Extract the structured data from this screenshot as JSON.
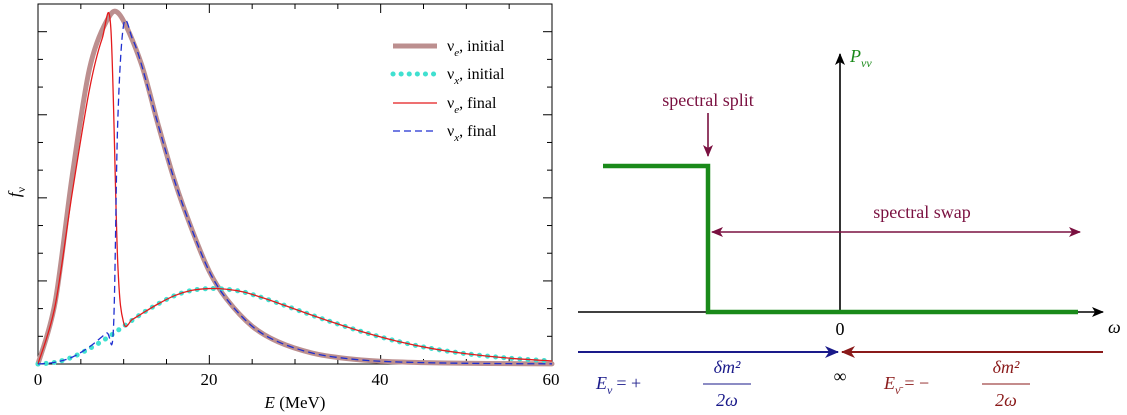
{
  "colors": {
    "nue_initial": "#bc8f8f",
    "nux_initial": "#40e0d0",
    "nue_final": "#e41a1c",
    "nux_final": "#1f2fd0",
    "step": "#1a8a1a",
    "annot": "#7a1040",
    "nu_arrow": "#1a1a8a",
    "nubar_arrow": "#8a1a1a"
  },
  "chart_data": {
    "type": "line",
    "xlabel": "E (MeV)",
    "ylabel": "f_ν",
    "xlim": [
      0,
      60
    ],
    "ylim": [
      0,
      1.05
    ],
    "x_ticks": [
      "0",
      "20",
      "40",
      "60"
    ],
    "legend_position": "top-right",
    "series": [
      {
        "name": "νe, initial",
        "style": "thick solid",
        "x": [
          0,
          2,
          4,
          6,
          8,
          9.5,
          12,
          14,
          16,
          18,
          20,
          22,
          25,
          28,
          32,
          36,
          40,
          45,
          50,
          55,
          60
        ],
        "y": [
          0,
          0.18,
          0.55,
          0.86,
          1.0,
          1.02,
          0.88,
          0.7,
          0.53,
          0.39,
          0.27,
          0.19,
          0.11,
          0.065,
          0.032,
          0.016,
          0.008,
          0.004,
          0.002,
          0.001,
          0.0005
        ]
      },
      {
        "name": "νx, initial",
        "style": "dotted",
        "x": [
          0,
          2,
          4,
          6,
          8,
          10,
          12,
          14,
          16,
          18,
          20,
          22,
          24,
          26,
          28,
          30,
          34,
          38,
          42,
          46,
          50,
          55,
          60
        ],
        "y": [
          0,
          0.005,
          0.02,
          0.045,
          0.075,
          0.11,
          0.145,
          0.175,
          0.2,
          0.215,
          0.22,
          0.218,
          0.21,
          0.195,
          0.178,
          0.16,
          0.125,
          0.093,
          0.066,
          0.045,
          0.03,
          0.017,
          0.009
        ]
      },
      {
        "name": "νe, final",
        "style": "solid",
        "x": [
          0,
          2,
          4,
          6,
          7.5,
          8.5,
          9.3,
          10,
          11,
          12,
          14,
          16,
          18,
          20,
          22,
          24,
          26,
          28,
          30,
          34,
          38,
          42,
          46,
          50,
          55,
          60
        ],
        "y": [
          0,
          0.17,
          0.5,
          0.8,
          0.95,
          0.98,
          0.3,
          0.12,
          0.13,
          0.145,
          0.175,
          0.2,
          0.215,
          0.22,
          0.218,
          0.21,
          0.195,
          0.178,
          0.16,
          0.125,
          0.093,
          0.066,
          0.045,
          0.03,
          0.017,
          0.009
        ]
      },
      {
        "name": "νx, final",
        "style": "dashed",
        "x": [
          0,
          2,
          4,
          6,
          8,
          8.8,
          9.3,
          10,
          11,
          12,
          14,
          16,
          18,
          20,
          22,
          25,
          28,
          32,
          36,
          40,
          45,
          50,
          55,
          60
        ],
        "y": [
          0,
          0.005,
          0.02,
          0.05,
          0.09,
          0.1,
          0.7,
          0.99,
          0.95,
          0.88,
          0.7,
          0.53,
          0.39,
          0.27,
          0.19,
          0.11,
          0.065,
          0.032,
          0.016,
          0.008,
          0.004,
          0.002,
          0.001,
          0.0005
        ]
      }
    ]
  },
  "legend": {
    "items": [
      {
        "sym": "ν",
        "sub": "e",
        "text": ", initial"
      },
      {
        "sym": "ν",
        "sub": "x",
        "text": ", initial"
      },
      {
        "sym": "ν",
        "sub": "e",
        "text": ", final"
      },
      {
        "sym": "ν",
        "sub": "x",
        "text": ", final"
      }
    ]
  },
  "left_axes": {
    "xlabel_var": "E",
    "xlabel_unit": " (MeV)",
    "ylabel_main": "f",
    "ylabel_sub": "ν"
  },
  "right": {
    "p_label_main": "P",
    "p_label_sub": "νν",
    "spectral_split": "spectral split",
    "spectral_swap": "spectral swap",
    "omega": "ω",
    "zero": "0",
    "infinity": "∞",
    "enu_lhs_main": "E",
    "enu_lhs_sub": "ν",
    "enu_sign": "= +",
    "enubar_lhs_main": "E",
    "enubar_lhs_sub": "ν̄",
    "enubar_sign": "= −",
    "frac_num": "δm²",
    "frac_den": "2ω"
  }
}
